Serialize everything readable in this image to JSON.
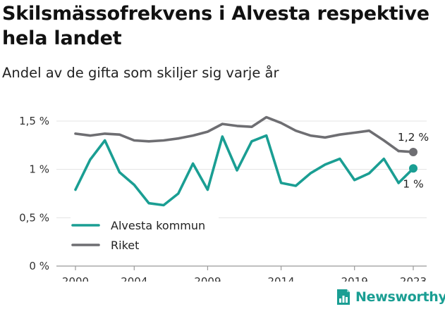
{
  "header": {
    "title": "Skilsmässofrekvens i Alvesta respektive hela landet",
    "subtitle": "Andel av de gifta som skiljer sig varje år"
  },
  "brand": {
    "name": "Newsworthy",
    "color": "#1a9e93",
    "icon": "bar-chart-document-icon"
  },
  "chart_data": {
    "type": "line",
    "x": [
      2000,
      2001,
      2002,
      2003,
      2004,
      2005,
      2006,
      2007,
      2008,
      2009,
      2010,
      2011,
      2012,
      2013,
      2014,
      2015,
      2016,
      2017,
      2018,
      2019,
      2020,
      2021,
      2022,
      2023
    ],
    "series": [
      {
        "name": "Alvesta kommun",
        "color": "#1a9e93",
        "values": [
          0.79,
          1.1,
          1.3,
          0.97,
          0.84,
          0.65,
          0.63,
          0.75,
          1.06,
          0.79,
          1.34,
          0.99,
          1.29,
          1.35,
          0.86,
          0.83,
          0.96,
          1.05,
          1.11,
          0.89,
          0.96,
          1.11,
          0.86,
          1.01
        ],
        "end_label": "1 %"
      },
      {
        "name": "Riket",
        "color": "#6e6e72",
        "values": [
          1.37,
          1.35,
          1.37,
          1.36,
          1.3,
          1.29,
          1.3,
          1.32,
          1.35,
          1.39,
          1.47,
          1.45,
          1.44,
          1.54,
          1.48,
          1.4,
          1.35,
          1.33,
          1.36,
          1.38,
          1.4,
          1.3,
          1.19,
          1.18
        ],
        "end_label": "1,2 %"
      }
    ],
    "title": "Skilsmässofrekvens i Alvesta respektive hela landet",
    "subtitle": "Andel av de gifta som skiljer sig varje år",
    "xlabel": "",
    "ylabel": "",
    "ylim": [
      0,
      1.5
    ],
    "xlim": [
      2000,
      2023
    ],
    "y_ticks": [
      {
        "value": 0,
        "label": "0 %"
      },
      {
        "value": 0.5,
        "label": "0,5 %"
      },
      {
        "value": 1,
        "label": "1 %"
      },
      {
        "value": 1.5,
        "label": "1,5 %"
      }
    ],
    "x_ticks": [
      {
        "value": 2000,
        "label": "2000"
      },
      {
        "value": 2004,
        "label": "2004"
      },
      {
        "value": 2009,
        "label": "2009"
      },
      {
        "value": 2014,
        "label": "2014"
      },
      {
        "value": 2019,
        "label": "2019"
      },
      {
        "value": 2023,
        "label": "2023"
      }
    ],
    "grid": true,
    "legend_position": "bottom-left"
  }
}
